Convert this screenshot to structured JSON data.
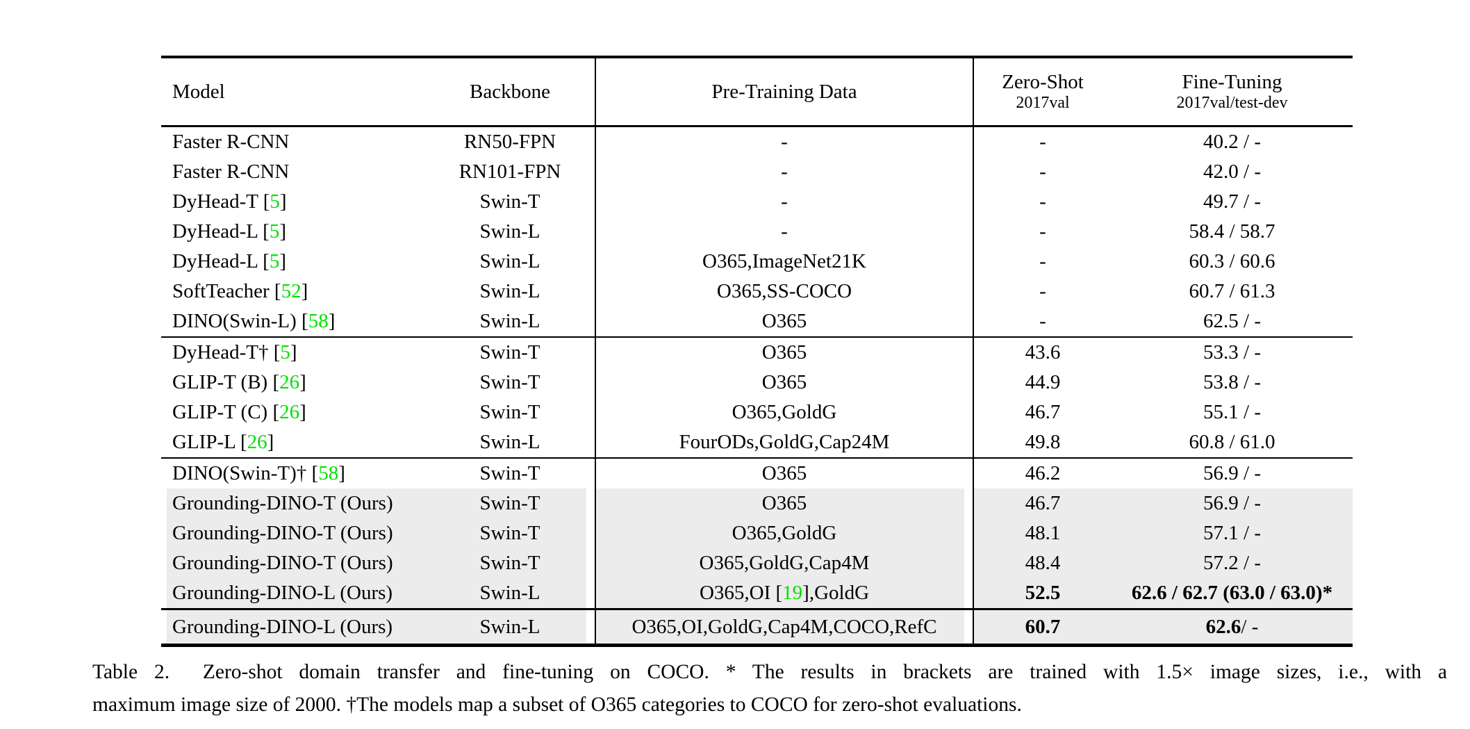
{
  "colors": {
    "cite_green": "#00e000",
    "row_highlight": "#ececec"
  },
  "table": {
    "headers": {
      "model": "Model",
      "backbone": "Backbone",
      "pretrain": "Pre-Training Data",
      "zeroshot": "Zero-Shot",
      "zeroshot_sub": "2017val",
      "finetune": "Fine-Tuning",
      "finetune_sub": "2017val/test-dev"
    },
    "blocks": [
      {
        "rows": [
          {
            "m_pre": "Faster R-CNN",
            "m_cite": "",
            "m_post": "",
            "backbone": "RN50-FPN",
            "pt_pre": "-",
            "pt_cite": "",
            "pt_post": "",
            "zs": "-",
            "zs_b": false,
            "ftb": "",
            "ft": "40.2 / -",
            "hl": false
          },
          {
            "m_pre": "Faster R-CNN",
            "m_cite": "",
            "m_post": "",
            "backbone": "RN101-FPN",
            "pt_pre": "-",
            "pt_cite": "",
            "pt_post": "",
            "zs": "-",
            "zs_b": false,
            "ftb": "",
            "ft": "42.0 / -",
            "hl": false
          },
          {
            "m_pre": "DyHead-T [",
            "m_cite": "5",
            "m_post": "]",
            "backbone": "Swin-T",
            "pt_pre": "-",
            "pt_cite": "",
            "pt_post": "",
            "zs": "-",
            "zs_b": false,
            "ftb": "",
            "ft": "49.7 / -",
            "hl": false
          },
          {
            "m_pre": "DyHead-L [",
            "m_cite": "5",
            "m_post": "]",
            "backbone": "Swin-L",
            "pt_pre": "-",
            "pt_cite": "",
            "pt_post": "",
            "zs": "-",
            "zs_b": false,
            "ftb": "",
            "ft": "58.4 / 58.7",
            "hl": false
          },
          {
            "m_pre": "DyHead-L [",
            "m_cite": "5",
            "m_post": "]",
            "backbone": "Swin-L",
            "pt_pre": "O365,ImageNet21K",
            "pt_cite": "",
            "pt_post": "",
            "zs": "-",
            "zs_b": false,
            "ftb": "",
            "ft": "60.3 / 60.6",
            "hl": false
          },
          {
            "m_pre": "SoftTeacher [",
            "m_cite": "52",
            "m_post": "]",
            "backbone": "Swin-L",
            "pt_pre": "O365,SS-COCO",
            "pt_cite": "",
            "pt_post": "",
            "zs": "-",
            "zs_b": false,
            "ftb": "",
            "ft": "60.7 / 61.3",
            "hl": false
          },
          {
            "m_pre": "DINO(Swin-L) [",
            "m_cite": "58",
            "m_post": "]",
            "backbone": "Swin-L",
            "pt_pre": "O365",
            "pt_cite": "",
            "pt_post": "",
            "zs": "-",
            "zs_b": false,
            "ftb": "",
            "ft": "62.5 / -",
            "hl": false
          }
        ]
      },
      {
        "rows": [
          {
            "m_pre": "DyHead-T† [",
            "m_cite": "5",
            "m_post": "]",
            "backbone": "Swin-T",
            "pt_pre": "O365",
            "pt_cite": "",
            "pt_post": "",
            "zs": "43.6",
            "zs_b": false,
            "ftb": "",
            "ft": "53.3 / -",
            "hl": false
          },
          {
            "m_pre": "GLIP-T (B) [",
            "m_cite": "26",
            "m_post": "]",
            "backbone": "Swin-T",
            "pt_pre": "O365",
            "pt_cite": "",
            "pt_post": "",
            "zs": "44.9",
            "zs_b": false,
            "ftb": "",
            "ft": "53.8 / -",
            "hl": false
          },
          {
            "m_pre": "GLIP-T (C) [",
            "m_cite": "26",
            "m_post": "]",
            "backbone": "Swin-T",
            "pt_pre": "O365,GoldG",
            "pt_cite": "",
            "pt_post": "",
            "zs": "46.7",
            "zs_b": false,
            "ftb": "",
            "ft": "55.1 / -",
            "hl": false
          },
          {
            "m_pre": "GLIP-L [",
            "m_cite": "26",
            "m_post": "]",
            "backbone": "Swin-L",
            "pt_pre": "FourODs,GoldG,Cap24M",
            "pt_cite": "",
            "pt_post": "",
            "zs": "49.8",
            "zs_b": false,
            "ftb": "",
            "ft": "60.8 / 61.0",
            "hl": false
          }
        ]
      },
      {
        "rows": [
          {
            "m_pre": "DINO(Swin-T)† [",
            "m_cite": "58",
            "m_post": "]",
            "backbone": "Swin-T",
            "pt_pre": "O365",
            "pt_cite": "",
            "pt_post": "",
            "zs": "46.2",
            "zs_b": false,
            "ftb": "",
            "ft": "56.9 / -",
            "hl": false
          },
          {
            "m_pre": "Grounding-DINO-T (Ours)",
            "m_cite": "",
            "m_post": "",
            "backbone": "Swin-T",
            "pt_pre": "O365",
            "pt_cite": "",
            "pt_post": "",
            "zs": "46.7",
            "zs_b": false,
            "ftb": "",
            "ft": "56.9 / -",
            "hl": true
          },
          {
            "m_pre": "Grounding-DINO-T (Ours)",
            "m_cite": "",
            "m_post": "",
            "backbone": "Swin-T",
            "pt_pre": "O365,GoldG",
            "pt_cite": "",
            "pt_post": "",
            "zs": "48.1",
            "zs_b": false,
            "ftb": "",
            "ft": "57.1 / -",
            "hl": true
          },
          {
            "m_pre": "Grounding-DINO-T (Ours)",
            "m_cite": "",
            "m_post": "",
            "backbone": "Swin-T",
            "pt_pre": "O365,GoldG,Cap4M",
            "pt_cite": "",
            "pt_post": "",
            "zs": "48.4",
            "zs_b": false,
            "ftb": "",
            "ft": "57.2 / -",
            "hl": true
          },
          {
            "m_pre": "Grounding-DINO-L (Ours)",
            "m_cite": "",
            "m_post": "",
            "backbone": "Swin-L",
            "pt_pre": "O365,OI [",
            "pt_cite": "19",
            "pt_post": "],GoldG",
            "zs": "52.5",
            "zs_b": true,
            "ftb": "62.6 / 62.7 (63.0 / 63.0)*",
            "ft": "",
            "hl": true
          }
        ]
      },
      {
        "rows": [
          {
            "m_pre": "Grounding-DINO-L (Ours)",
            "m_cite": "",
            "m_post": "",
            "backbone": "Swin-L",
            "pt_pre": "O365,OI,GoldG,Cap4M,COCO,RefC",
            "pt_cite": "",
            "pt_post": "",
            "zs": "60.7",
            "zs_b": true,
            "ftb": "62.6",
            "ft": " / -",
            "hl": true
          }
        ]
      }
    ]
  },
  "caption": {
    "line1": "Table 2.  Zero-shot domain transfer and fine-tuning on COCO. * The results in brackets are trained with 1.5× image sizes, i.e., with a",
    "line2": "maximum image size of 2000. †The models map a subset of O365 categories to COCO for zero-shot evaluations."
  }
}
